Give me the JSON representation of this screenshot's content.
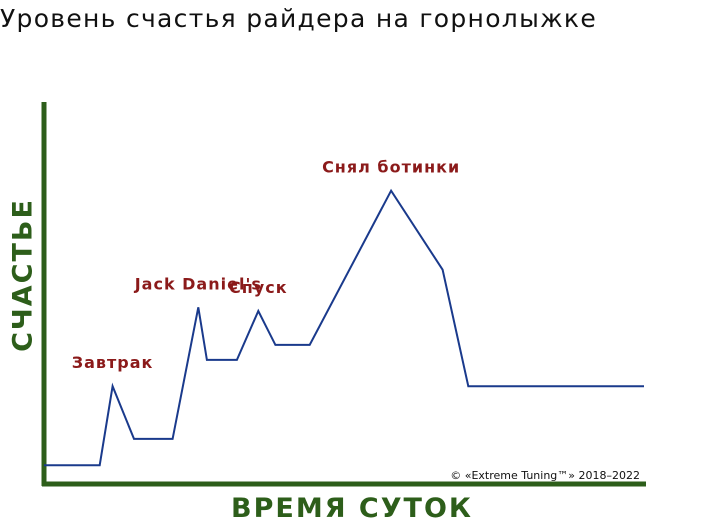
{
  "chart_data": {
    "type": "line",
    "title": "Уровень счастья райдера на горнолыжке",
    "xlabel": "ВРЕМЯ СУТОК",
    "ylabel": "СЧАСТЬЕ",
    "x": [
      0,
      6.5,
      8,
      10.5,
      15,
      18,
      19,
      22.5,
      25,
      27,
      29,
      31,
      40.5,
      46.5,
      49.5,
      60,
      70
    ],
    "y": [
      5,
      5,
      26,
      12,
      12,
      47,
      33,
      33,
      46,
      37,
      37,
      37,
      78,
      57,
      26,
      26,
      26
    ],
    "annotations": [
      {
        "text": "Завтрак",
        "x": 8,
        "y": 26
      },
      {
        "text": "Jack Daniel's",
        "x": 18,
        "y": 47
      },
      {
        "text": "Спуск",
        "x": 25,
        "y": 46
      },
      {
        "text": "Снял ботинки",
        "x": 40.5,
        "y": 78
      }
    ],
    "xlim": [
      0,
      70
    ],
    "ylim": [
      0,
      100
    ],
    "grid": false,
    "colors": {
      "line": "#1a3a8c",
      "axis": "#2d5e1a",
      "annotation": "#8b1a1a"
    }
  },
  "copyright": "© «Extreme Tuning™» 2018–2022"
}
